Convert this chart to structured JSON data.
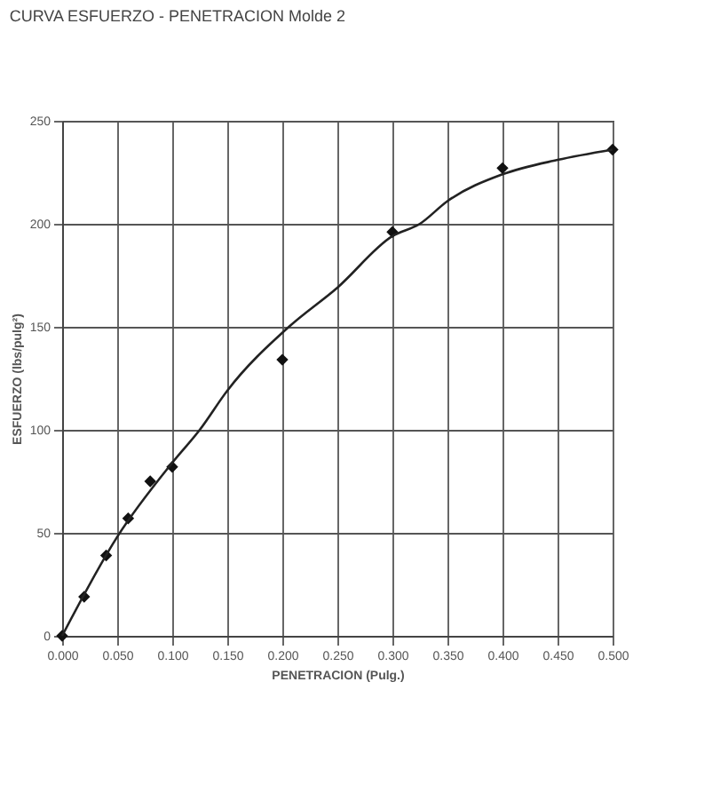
{
  "chart_data": {
    "type": "scatter",
    "title": "CURVA ESFUERZO - PENETRACION  Molde 2",
    "xlabel": "PENETRACION (Pulg.)",
    "ylabel": "ESFUERZO (lbs/pulg²)",
    "series": [
      {
        "color": "#111111",
        "marker": "diamond",
        "x": [
          0,
          0.02,
          0.04,
          0.06,
          0.08,
          0.1,
          0.2,
          0.3,
          0.4,
          0.5
        ],
        "values": [
          0,
          19,
          39,
          57,
          75,
          82,
          134,
          196,
          227,
          236
        ]
      },
      {
        "type": "line",
        "color": "#222222",
        "line_style": "solid",
        "x": [
          0,
          0.05,
          0.1,
          0.125,
          0.15,
          0.206,
          0.25,
          0.3,
          0.325,
          0.35,
          0.4,
          0.45,
          0.5
        ],
        "values": [
          0,
          48,
          84,
          100,
          119,
          150,
          169,
          194,
          200,
          211,
          224,
          231,
          236
        ]
      }
    ],
    "xlim": [
      0,
      0.5
    ],
    "ylim": [
      0,
      250
    ],
    "xticks": [
      {
        "value": 0,
        "label": "0.000"
      },
      {
        "value": 0.05,
        "label": "0.050"
      },
      {
        "value": 0.1,
        "label": "0.100"
      },
      {
        "value": 0.15,
        "label": "0.150"
      },
      {
        "value": 0.2,
        "label": "0.200"
      },
      {
        "value": 0.25,
        "label": "0.250"
      },
      {
        "value": 0.3,
        "label": "0.300"
      },
      {
        "value": 0.35,
        "label": "0.350"
      },
      {
        "value": 0.4,
        "label": "0.400"
      },
      {
        "value": 0.45,
        "label": "0.450"
      },
      {
        "value": 0.5,
        "label": "0.500"
      }
    ],
    "yticks": [
      0,
      50,
      100,
      150,
      200,
      250
    ],
    "grid": true
  }
}
